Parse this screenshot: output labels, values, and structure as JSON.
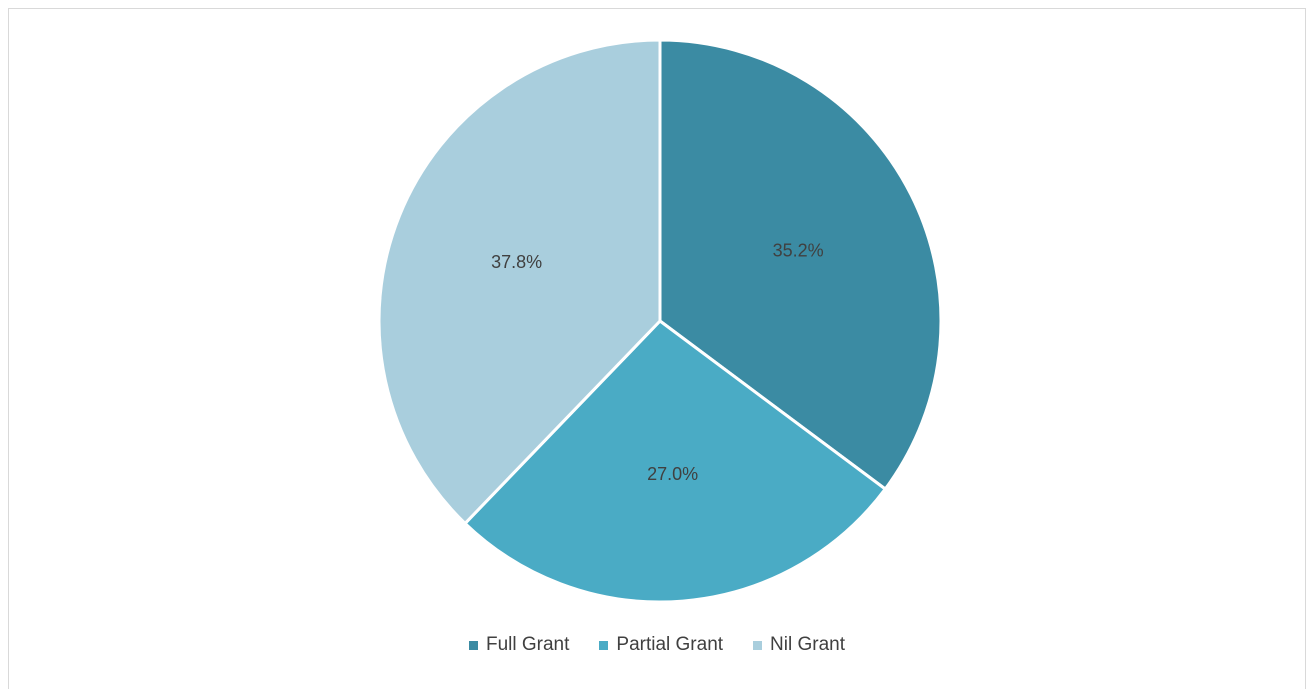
{
  "chart_data": {
    "type": "pie",
    "categories": [
      "Full Grant",
      "Partial Grant",
      "Nil Grant"
    ],
    "values": [
      35.2,
      27.0,
      37.8
    ],
    "labels": [
      "35.2%",
      "27.0%",
      "37.8%"
    ],
    "colors": [
      "#3b8ba3",
      "#4aabc5",
      "#a9cedd"
    ],
    "start_angle_deg": 0,
    "direction": "clockwise",
    "legend_position": "bottom",
    "title": ""
  }
}
